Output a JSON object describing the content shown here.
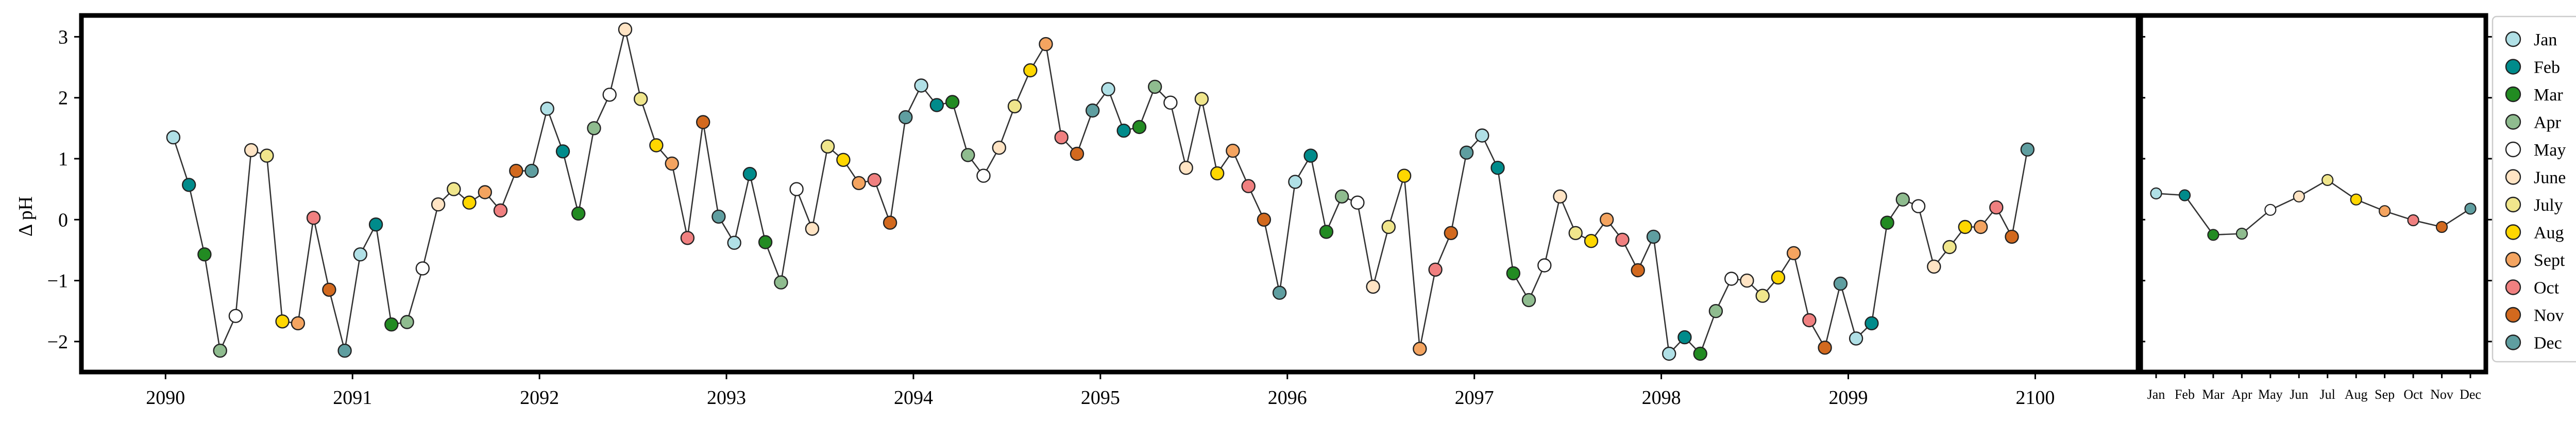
{
  "chart_data": [
    {
      "type": "line",
      "ylabel": "Δ pH",
      "xlim": [
        2089.55,
        2100.55
      ],
      "ylim": [
        -2.5,
        3.35
      ],
      "xticks": [
        2090,
        2091,
        2092,
        2093,
        2094,
        2095,
        2096,
        2097,
        2098,
        2099,
        2100
      ],
      "yticks": [
        -2,
        -1,
        0,
        1,
        2,
        3
      ],
      "line_color": "#333333",
      "values": [
        1.35,
        0.57,
        -0.57,
        -2.15,
        -1.58,
        1.14,
        1.05,
        -1.67,
        -1.7,
        0.03,
        -1.15,
        -2.15,
        -0.57,
        -0.08,
        -1.72,
        -1.68,
        -0.8,
        0.25,
        0.5,
        0.28,
        0.45,
        0.15,
        0.8,
        0.8,
        1.82,
        1.12,
        0.1,
        1.5,
        2.05,
        3.12,
        1.98,
        1.22,
        0.92,
        -0.3,
        1.6,
        0.05,
        -0.38,
        0.75,
        -0.37,
        -1.03,
        0.5,
        -0.15,
        1.2,
        0.98,
        0.6,
        0.65,
        -0.05,
        1.68,
        2.2,
        1.88,
        1.93,
        1.06,
        0.72,
        1.18,
        1.86,
        2.45,
        2.88,
        1.35,
        1.08,
        1.79,
        2.14,
        1.46,
        1.52,
        2.18,
        1.92,
        0.85,
        1.98,
        0.76,
        1.13,
        0.55,
        0.0,
        -1.2,
        0.62,
        1.05,
        -0.2,
        0.38,
        0.28,
        -1.1,
        -0.12,
        0.72,
        -2.12,
        -0.82,
        -0.22,
        1.1,
        1.38,
        0.85,
        -0.88,
        -1.32,
        -0.75,
        0.38,
        -0.22,
        -0.35,
        0.0,
        -0.33,
        -0.83,
        -0.28,
        -2.2,
        -1.93,
        -2.2,
        -1.5,
        -0.97,
        -1.0,
        -1.25,
        -0.95,
        -0.55,
        -1.65,
        -2.1,
        -1.05,
        -1.95,
        -1.7,
        -0.05,
        0.33,
        0.22,
        -0.77,
        -0.45,
        -0.12,
        -0.12,
        0.2,
        -0.28,
        1.15
      ]
    },
    {
      "type": "line",
      "categories": [
        "Jan",
        "Feb",
        "Mar",
        "Apr",
        "May",
        "Jun",
        "Jul",
        "Aug",
        "Sep",
        "Oct",
        "Nov",
        "Dec"
      ],
      "values": [
        0.43,
        0.4,
        -0.25,
        -0.23,
        0.16,
        0.38,
        0.65,
        0.33,
        0.14,
        -0.01,
        -0.12,
        0.18
      ],
      "ylim": [
        -2.5,
        3.35
      ],
      "line_color": "#333333"
    }
  ],
  "legend": {
    "placement": "right",
    "items": [
      {
        "label": "Jan",
        "color": "#b0e0e6"
      },
      {
        "label": "Feb",
        "color": "#008b8b"
      },
      {
        "label": "Mar",
        "color": "#228b22"
      },
      {
        "label": "Apr",
        "color": "#8fbc8f"
      },
      {
        "label": "May",
        "color": "#ffffff"
      },
      {
        "label": "June",
        "color": "#ffe4c4"
      },
      {
        "label": "July",
        "color": "#f0e68c"
      },
      {
        "label": "Aug",
        "color": "#ffd700"
      },
      {
        "label": "Sept",
        "color": "#f4a460"
      },
      {
        "label": "Oct",
        "color": "#f08080"
      },
      {
        "label": "Nov",
        "color": "#d2691e"
      },
      {
        "label": "Dec",
        "color": "#5f9ea0"
      }
    ]
  },
  "right_panel_labels": [
    "Jan",
    "Feb",
    "Mar",
    "Apr",
    "May",
    "Jun",
    "Jul",
    "Aug",
    "Sep",
    "Oct",
    "Nov",
    "Dec"
  ]
}
